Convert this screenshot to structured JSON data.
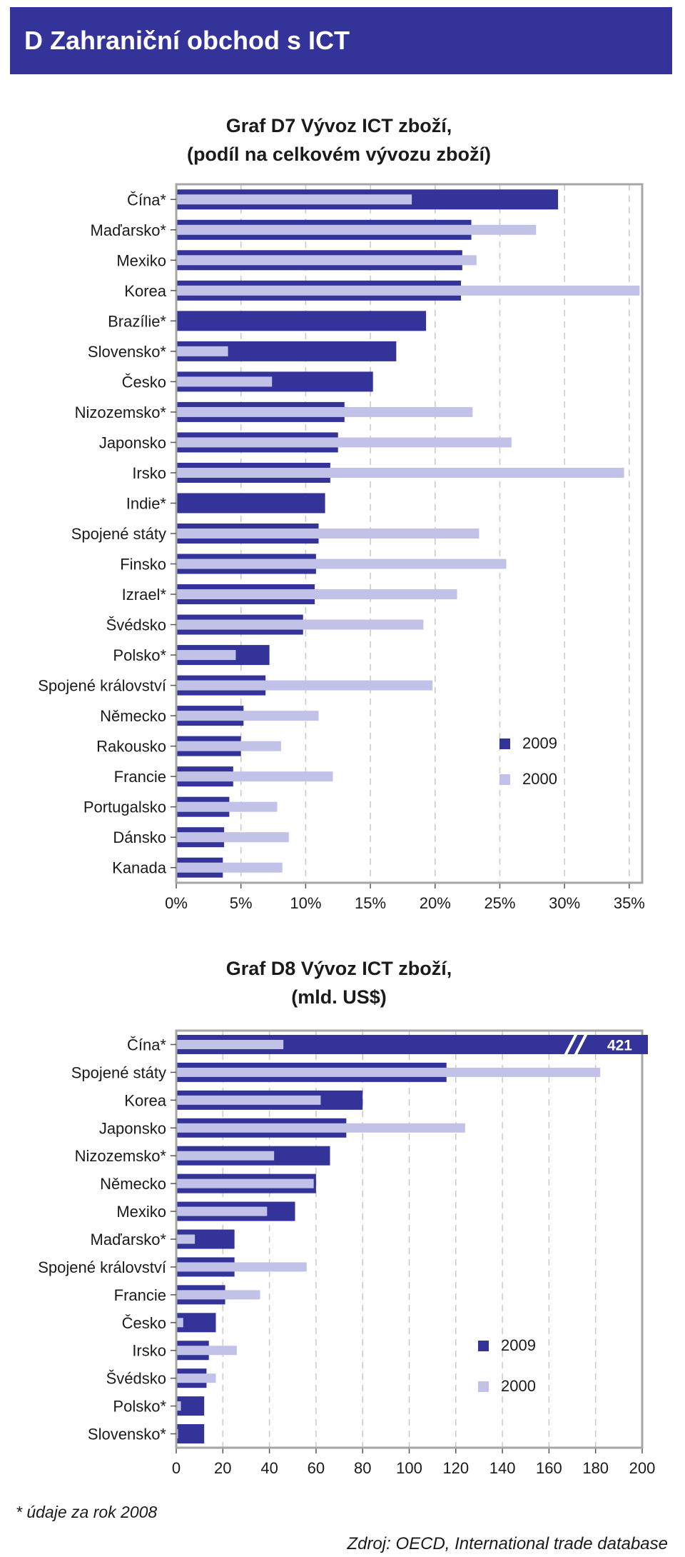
{
  "header": {
    "title": "D  Zahraniční obchod s ICT"
  },
  "colors": {
    "series_2009": "#33339a",
    "series_2000": "#c2c2e8",
    "header_bg": "#33339a",
    "frame": "#a6a6a6",
    "grid": "#c8c8c8"
  },
  "chart_data": [
    {
      "type": "bar",
      "orientation": "horizontal",
      "title_lines": [
        "Graf D7 Vývoz ICT zboží,",
        "(podíl na celkovém vývozu zboží)"
      ],
      "categories": [
        "Čína*",
        "Maďarsko*",
        "Mexiko",
        "Korea",
        "Brazílie*",
        "Slovensko*",
        "Česko",
        "Nizozemsko*",
        "Japonsko",
        "Irsko",
        "Indie*",
        "Spojené státy",
        "Finsko",
        "Izrael*",
        "Švédsko",
        "Polsko*",
        "Spojené království",
        "Německo",
        "Rakousko",
        "Francie",
        "Portugalsko",
        "Dánsko",
        "Kanada"
      ],
      "series": [
        {
          "name": "2009",
          "values": [
            29.5,
            22.8,
            22.1,
            22.0,
            19.3,
            17.0,
            15.2,
            13.0,
            12.5,
            11.9,
            11.5,
            11.0,
            10.8,
            10.7,
            9.8,
            7.2,
            6.9,
            5.2,
            5.0,
            4.4,
            4.1,
            3.7,
            3.6
          ]
        },
        {
          "name": "2000",
          "values": [
            18.2,
            27.8,
            23.2,
            35.8,
            null,
            4.0,
            7.4,
            22.9,
            25.9,
            34.6,
            null,
            23.4,
            25.5,
            21.7,
            19.1,
            4.6,
            19.8,
            11.0,
            8.1,
            12.1,
            7.8,
            8.7,
            8.2
          ]
        }
      ],
      "x_ticks": [
        "0%",
        "5%",
        "10%",
        "15%",
        "20%",
        "25%",
        "30%",
        "35%"
      ],
      "xlim": [
        0,
        36
      ],
      "unit": "%",
      "grid": "vertical dashed",
      "legend": {
        "position": "bottom-right",
        "order": [
          "2009",
          "2000"
        ]
      }
    },
    {
      "type": "bar",
      "orientation": "horizontal",
      "title_lines": [
        "Graf D8 Vývoz ICT zboží,",
        "(mld. US$)"
      ],
      "categories": [
        "Čína*",
        "Spojené státy",
        "Korea",
        "Japonsko",
        "Nizozemsko*",
        "Německo",
        "Mexiko",
        "Maďarsko*",
        "Spojené království",
        "Francie",
        "Česko",
        "Irsko",
        "Švédsko",
        "Polsko*",
        "Slovensko*"
      ],
      "series": [
        {
          "name": "2009",
          "values": [
            421,
            116,
            80,
            73,
            66,
            60,
            51,
            25,
            25,
            21,
            17,
            14,
            13,
            12,
            12
          ]
        },
        {
          "name": "2000",
          "values": [
            46,
            182,
            62,
            124,
            42,
            59,
            39,
            8,
            56,
            36,
            3,
            26,
            17,
            2,
            0.5
          ]
        }
      ],
      "x_ticks": [
        "0",
        "20",
        "40",
        "60",
        "80",
        "100",
        "120",
        "140",
        "160",
        "180",
        "200"
      ],
      "xlim": [
        0,
        200
      ],
      "axis_break": {
        "category": "Čína*",
        "series": "2009",
        "label": "421"
      },
      "grid": "vertical dashed",
      "legend": {
        "position": "bottom-right",
        "order": [
          "2009",
          "2000"
        ]
      }
    }
  ],
  "footnote": "* údaje za rok 2008",
  "source": "Zdroj: OECD, International trade database"
}
